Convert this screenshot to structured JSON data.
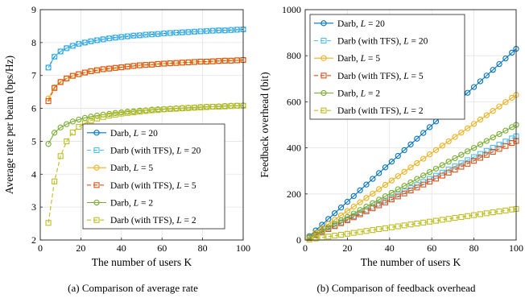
{
  "figure": {
    "caption_a": "(a) Comparison of average rate",
    "caption_b": "(b) Comparison of feedback overhead"
  },
  "chart_data": [
    {
      "type": "line",
      "xlabel": "The number of users K",
      "ylabel": "Average rate per beam (bps/Hz)",
      "xlim": [
        0,
        100
      ],
      "ylim": [
        2,
        9
      ],
      "xticks": [
        0,
        20,
        40,
        60,
        80,
        100
      ],
      "yticks": [
        2,
        3,
        4,
        5,
        6,
        7,
        8,
        9
      ],
      "grid": true,
      "legend_position": "center-right",
      "x": [
        4,
        7,
        10,
        13,
        16,
        19,
        22,
        25,
        28,
        31,
        34,
        37,
        40,
        43,
        46,
        49,
        52,
        55,
        58,
        61,
        64,
        67,
        70,
        73,
        76,
        79,
        82,
        85,
        88,
        91,
        94,
        97,
        100
      ],
      "series": [
        {
          "name": "Darb, ",
          "L": "20",
          "marker": "circle",
          "dash": "solid",
          "color": "#0072BD",
          "values": [
            7.24,
            7.57,
            7.73,
            7.83,
            7.9,
            7.96,
            8.0,
            8.04,
            8.07,
            8.1,
            8.13,
            8.15,
            8.17,
            8.19,
            8.21,
            8.22,
            8.24,
            8.25,
            8.26,
            8.28,
            8.29,
            8.3,
            8.31,
            8.32,
            8.33,
            8.34,
            8.35,
            8.36,
            8.37,
            8.37,
            8.38,
            8.39,
            8.4
          ]
        },
        {
          "name": "Darb (with TFS), ",
          "L": "20",
          "marker": "square",
          "dash": "dashed",
          "color": "#4DBEEE",
          "values": [
            7.24,
            7.57,
            7.73,
            7.83,
            7.9,
            7.96,
            8.0,
            8.04,
            8.07,
            8.1,
            8.13,
            8.15,
            8.17,
            8.19,
            8.21,
            8.22,
            8.24,
            8.25,
            8.26,
            8.28,
            8.29,
            8.3,
            8.31,
            8.32,
            8.33,
            8.34,
            8.35,
            8.36,
            8.37,
            8.37,
            8.38,
            8.39,
            8.4
          ]
        },
        {
          "name": "Darb, ",
          "L": "5",
          "marker": "circle",
          "dash": "solid",
          "color": "#EDB120",
          "values": [
            6.3,
            6.64,
            6.81,
            6.91,
            6.99,
            7.04,
            7.09,
            7.13,
            7.16,
            7.19,
            7.21,
            7.23,
            7.25,
            7.27,
            7.29,
            7.31,
            7.32,
            7.33,
            7.35,
            7.36,
            7.37,
            7.38,
            7.39,
            7.4,
            7.41,
            7.42,
            7.42,
            7.43,
            7.44,
            7.45,
            7.45,
            7.46,
            7.47
          ]
        },
        {
          "name": "Darb (with TFS), ",
          "L": "5",
          "marker": "square",
          "dash": "dashed",
          "color": "#D95319",
          "values": [
            6.22,
            6.62,
            6.8,
            6.91,
            6.99,
            7.04,
            7.09,
            7.13,
            7.16,
            7.19,
            7.21,
            7.23,
            7.25,
            7.27,
            7.29,
            7.31,
            7.32,
            7.33,
            7.35,
            7.36,
            7.37,
            7.38,
            7.39,
            7.4,
            7.41,
            7.42,
            7.42,
            7.43,
            7.44,
            7.45,
            7.45,
            7.46,
            7.47
          ]
        },
        {
          "name": "Darb, ",
          "L": "2",
          "marker": "circle",
          "dash": "solid",
          "color": "#77AC30",
          "values": [
            4.92,
            5.26,
            5.42,
            5.52,
            5.6,
            5.66,
            5.71,
            5.75,
            5.78,
            5.81,
            5.83,
            5.86,
            5.88,
            5.9,
            5.91,
            5.93,
            5.94,
            5.96,
            5.97,
            5.98,
            5.99,
            6.0,
            6.01,
            6.02,
            6.03,
            6.04,
            6.05,
            6.05,
            6.06,
            6.07,
            6.08,
            6.08,
            6.09
          ]
        },
        {
          "name": "Darb (with TFS), ",
          "L": "2",
          "marker": "square",
          "dash": "dashed",
          "color": "#BDBD23",
          "values": [
            2.52,
            3.78,
            4.55,
            5.0,
            5.27,
            5.44,
            5.55,
            5.63,
            5.69,
            5.74,
            5.78,
            5.81,
            5.84,
            5.86,
            5.88,
            5.9,
            5.92,
            5.94,
            5.95,
            5.97,
            5.98,
            5.99,
            6.0,
            6.01,
            6.02,
            6.03,
            6.04,
            6.05,
            6.05,
            6.06,
            6.07,
            6.08,
            6.08
          ]
        }
      ]
    },
    {
      "type": "line",
      "xlabel": "The number of users K",
      "ylabel": "Feedback overhead (bit)",
      "xlim": [
        0,
        100
      ],
      "ylim": [
        0,
        1000
      ],
      "xticks": [
        0,
        20,
        40,
        60,
        80,
        100
      ],
      "yticks": [
        0,
        200,
        400,
        600,
        800,
        1000
      ],
      "grid": true,
      "legend_position": "top-left",
      "x": [
        2,
        5,
        8,
        11,
        14,
        17,
        20,
        23,
        26,
        29,
        32,
        35,
        38,
        41,
        44,
        47,
        50,
        53,
        56,
        59,
        62,
        65,
        68,
        71,
        74,
        77,
        80,
        83,
        86,
        89,
        92,
        95,
        98,
        100
      ],
      "series": [
        {
          "name": "Darb, ",
          "L": "20",
          "marker": "circle",
          "dash": "solid",
          "color": "#0072BD",
          "slope": 8.3,
          "slope_unit": "bit per user"
        },
        {
          "name": "Darb (with TFS), ",
          "L": "20",
          "marker": "square",
          "dash": "dashed",
          "color": "#4DBEEE",
          "slope": 4.5,
          "slope_unit": "bit per user"
        },
        {
          "name": "Darb, ",
          "L": "5",
          "marker": "circle",
          "dash": "solid",
          "color": "#EDB120",
          "slope": 6.3,
          "slope_unit": "bit per user"
        },
        {
          "name": "Darb (with TFS), ",
          "L": "5",
          "marker": "square",
          "dash": "dashed",
          "color": "#D95319",
          "slope": 4.3,
          "slope_unit": "bit per user"
        },
        {
          "name": "Darb, ",
          "L": "2",
          "marker": "circle",
          "dash": "solid",
          "color": "#77AC30",
          "slope": 5.0,
          "slope_unit": "bit per user"
        },
        {
          "name": "Darb (with TFS), ",
          "L": "2",
          "marker": "square",
          "dash": "dashed",
          "color": "#BDBD23",
          "slope": 1.35,
          "slope_unit": "bit per user"
        }
      ]
    }
  ]
}
